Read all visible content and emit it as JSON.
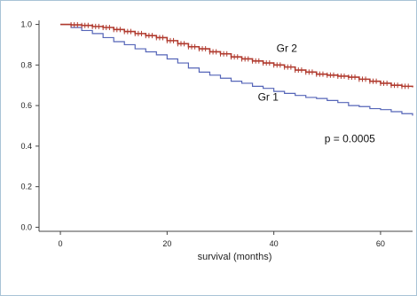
{
  "chart_data": {
    "type": "line",
    "xlabel": "survival (months)",
    "ylabel": "",
    "xlim": [
      -4,
      66
    ],
    "ylim": [
      -0.02,
      1.02
    ],
    "x_ticks": [
      0,
      20,
      40,
      60
    ],
    "y_ticks": [
      0.0,
      0.2,
      0.4,
      0.6,
      0.8,
      1.0
    ],
    "x_tick_labels": [
      "0",
      "20",
      "40",
      "60"
    ],
    "y_tick_labels": [
      "0.0",
      "0.2",
      "0.4",
      "0.6",
      "0.8",
      "1.0"
    ],
    "grid": false,
    "series": [
      {
        "name": "Gr 1",
        "color": "#5565b8",
        "x": [
          0,
          2,
          4,
          6,
          8,
          10,
          12,
          14,
          16,
          18,
          20,
          22,
          24,
          26,
          28,
          30,
          32,
          34,
          36,
          38,
          40,
          42,
          44,
          46,
          48,
          50,
          52,
          54,
          56,
          58,
          60,
          62,
          64,
          66
        ],
        "y": [
          1.0,
          0.985,
          0.97,
          0.955,
          0.935,
          0.915,
          0.9,
          0.88,
          0.865,
          0.85,
          0.83,
          0.81,
          0.785,
          0.765,
          0.75,
          0.735,
          0.72,
          0.71,
          0.695,
          0.685,
          0.67,
          0.66,
          0.65,
          0.64,
          0.635,
          0.625,
          0.615,
          0.6,
          0.595,
          0.585,
          0.58,
          0.57,
          0.56,
          0.55
        ],
        "label": "Gr 1",
        "label_at": [
          37,
          0.625
        ]
      },
      {
        "name": "Gr 2",
        "color": "#b03a2e",
        "x": [
          0,
          2,
          4,
          6,
          8,
          10,
          12,
          14,
          16,
          18,
          20,
          22,
          24,
          26,
          28,
          30,
          32,
          34,
          36,
          38,
          40,
          42,
          44,
          46,
          48,
          50,
          52,
          54,
          56,
          58,
          60,
          62,
          64,
          66
        ],
        "y": [
          1.0,
          0.998,
          0.995,
          0.99,
          0.985,
          0.975,
          0.965,
          0.955,
          0.945,
          0.935,
          0.92,
          0.905,
          0.89,
          0.88,
          0.865,
          0.855,
          0.84,
          0.83,
          0.82,
          0.81,
          0.8,
          0.79,
          0.775,
          0.765,
          0.755,
          0.75,
          0.745,
          0.74,
          0.73,
          0.72,
          0.71,
          0.7,
          0.695,
          0.69
        ],
        "label": "Gr 2",
        "label_at": [
          40.5,
          0.865
        ]
      }
    ],
    "annotation": "p = 0.0005",
    "annotation_at": [
      49.5,
      0.42
    ]
  }
}
